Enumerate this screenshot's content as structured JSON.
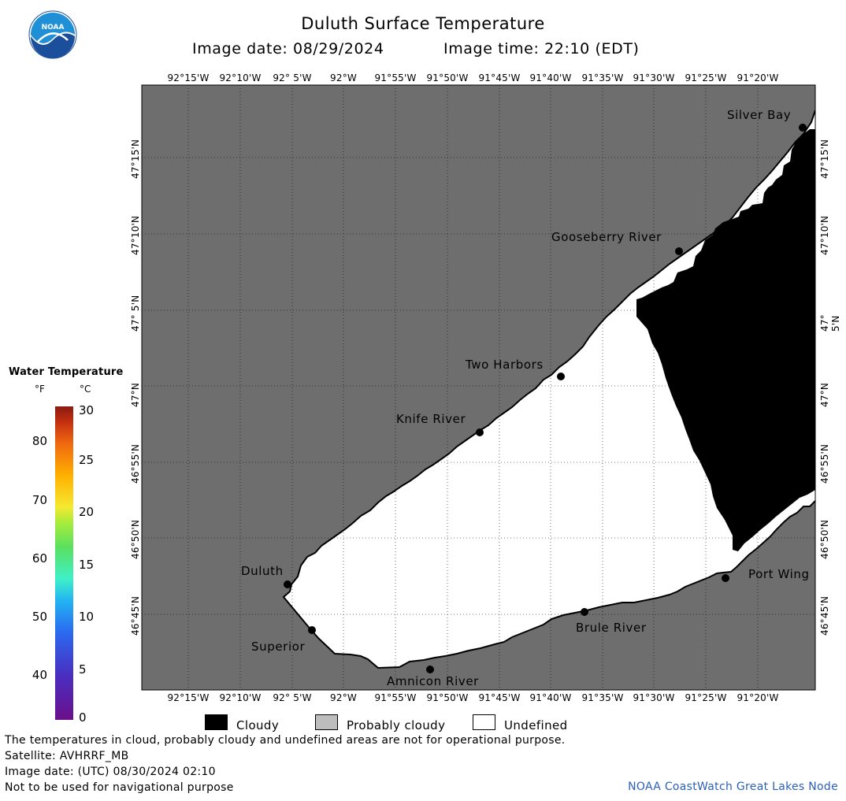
{
  "header": {
    "title": "Duluth Surface Temperature",
    "image_date": "Image date: 08/29/2024",
    "image_time": "Image time: 22:10 (EDT)"
  },
  "logo": {
    "name": "noaa-logo",
    "text": "NOAA"
  },
  "colors": {
    "land": "#6e6e6e",
    "water_undefined": "#ffffff",
    "cloudy": "#000000",
    "probably_cloudy": "#bdbdbd",
    "credit": "#2b5fb8"
  },
  "map": {
    "lon_labels": [
      "92°15'W",
      "92°10'W",
      "92° 5'W",
      "92°W",
      "91°55'W",
      "91°50'W",
      "91°45'W",
      "91°40'W",
      "91°35'W",
      "91°30'W",
      "91°25'W",
      "91°20'W"
    ],
    "lat_labels": [
      "47°15'N",
      "47°10'N",
      "47° 5'N",
      "47°N",
      "46°55'N",
      "46°50'N",
      "46°45'N"
    ],
    "places": [
      {
        "name": "Silver Bay"
      },
      {
        "name": "Gooseberry River"
      },
      {
        "name": "Two Harbors"
      },
      {
        "name": "Knife River"
      },
      {
        "name": "Duluth"
      },
      {
        "name": "Superior"
      },
      {
        "name": "Amnicon River"
      },
      {
        "name": "Brule River"
      },
      {
        "name": "Port Wing"
      }
    ]
  },
  "colorbar": {
    "title": "Water Temperature",
    "unit_f": "°F",
    "unit_c": "°C",
    "ticks_f": [
      "80",
      "70",
      "60",
      "50",
      "40"
    ],
    "ticks_c": [
      "30",
      "25",
      "20",
      "15",
      "10",
      "5",
      "0"
    ]
  },
  "legend": {
    "cloudy": "Cloudy",
    "probably_cloudy": "Probably cloudy",
    "undefined": "Undefined"
  },
  "footer": {
    "note": "The temperatures in cloud, probably cloudy and undefined areas are not for operational purpose.",
    "satellite": "Satellite: AVHRRF_MB",
    "utc_date": "Image date: (UTC) 08/30/2024  02:10",
    "nav_warning": "Not to be used for navigational purpose",
    "credit": "NOAA CoastWatch Great Lakes Node"
  }
}
